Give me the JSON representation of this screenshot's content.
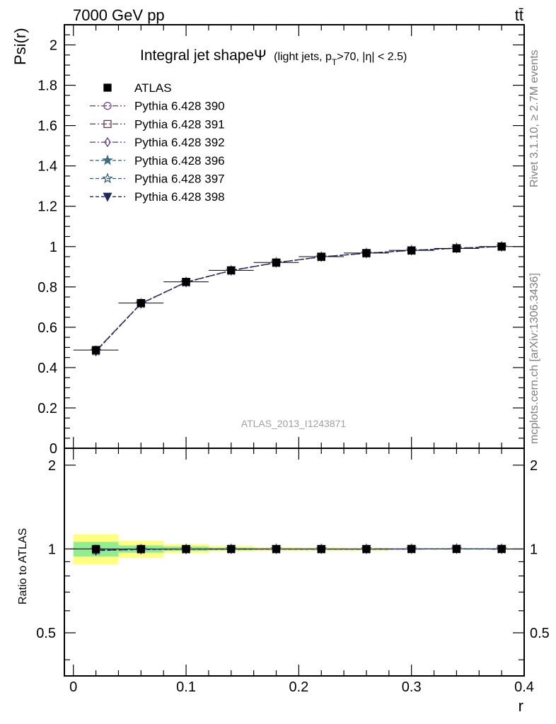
{
  "header": {
    "energy_label": "7000 GeV pp",
    "process_label": "tt̄",
    "side_rivet": "Rivet 3.1.10, ≥ 2.7M events",
    "side_mcplots": "mcplots.cern.ch [arXiv:1306.3436]",
    "analysis_id": "ATLAS_2013_I1243871"
  },
  "chart_data": [
    {
      "panel": "main",
      "type": "line",
      "title": "Integral jet shape Ψ (light jets, pT>70, |η| < 2.5)",
      "title_main": "Integral jet shapeΨ",
      "title_sub_pre": "(light jets, p",
      "title_sub_T": "T",
      "title_sub_post": ">70, |η| < 2.5)",
      "ylabel": "Psi(r)",
      "xlim": [
        -0.008,
        0.4
      ],
      "ylim": [
        0,
        2.1
      ],
      "yticks": [
        0,
        0.2,
        0.4,
        0.6,
        0.8,
        1,
        1.2,
        1.4,
        1.6,
        1.8,
        2
      ],
      "ytick_labels": [
        "0",
        "0.2",
        "0.4",
        "0.6",
        "0.8",
        "1",
        "1.2",
        "1.4",
        "1.6",
        "1.8",
        "2"
      ],
      "x": [
        0.02,
        0.06,
        0.1,
        0.14,
        0.18,
        0.22,
        0.26,
        0.3,
        0.34,
        0.38
      ],
      "bin_edges": [
        0,
        0.04,
        0.08,
        0.12,
        0.16,
        0.2,
        0.24,
        0.28,
        0.32,
        0.36,
        0.4
      ],
      "legend_position": "top-left",
      "series": [
        {
          "name": "ATLAS",
          "marker": "filled-square",
          "color": "#000000",
          "dash": "none",
          "values": [
            0.487,
            0.72,
            0.825,
            0.882,
            0.921,
            0.95,
            0.968,
            0.981,
            0.991,
            1.0
          ]
        },
        {
          "name": "Pythia 6.428 390",
          "marker": "open-circle",
          "color": "#7d4a8e",
          "dash": "dashdot",
          "values": [
            0.482,
            0.718,
            0.824,
            0.882,
            0.921,
            0.949,
            0.967,
            0.981,
            0.992,
            1.0
          ]
        },
        {
          "name": "Pythia 6.428 391",
          "marker": "open-square",
          "color": "#6b3a55",
          "dash": "dashdot",
          "values": [
            0.484,
            0.719,
            0.824,
            0.882,
            0.92,
            0.949,
            0.967,
            0.981,
            0.992,
            1.0
          ]
        },
        {
          "name": "Pythia 6.428 392",
          "marker": "open-diamond",
          "color": "#5a3a8e",
          "dash": "dashdot",
          "values": [
            0.481,
            0.718,
            0.823,
            0.881,
            0.92,
            0.949,
            0.967,
            0.981,
            0.992,
            1.0
          ]
        },
        {
          "name": "Pythia 6.428 396",
          "marker": "filled-star",
          "color": "#3d6d82",
          "dash": "dashed",
          "values": [
            0.482,
            0.717,
            0.823,
            0.881,
            0.92,
            0.949,
            0.967,
            0.981,
            0.992,
            1.0
          ]
        },
        {
          "name": "Pythia 6.428 397",
          "marker": "open-star",
          "color": "#2f5b73",
          "dash": "dashed",
          "values": [
            0.483,
            0.718,
            0.824,
            0.881,
            0.921,
            0.949,
            0.967,
            0.981,
            0.992,
            1.0
          ]
        },
        {
          "name": "Pythia 6.428 398",
          "marker": "filled-triangle-down",
          "color": "#1f2a5c",
          "dash": "dashed",
          "values": [
            0.48,
            0.717,
            0.823,
            0.881,
            0.92,
            0.949,
            0.967,
            0.981,
            0.992,
            1.0
          ]
        }
      ]
    },
    {
      "panel": "ratio",
      "type": "line",
      "ylabel": "Ratio to ATLAS",
      "xlabel": "r",
      "xlim": [
        -0.008,
        0.4
      ],
      "ylim": [
        0.35,
        2.3
      ],
      "scale": "log",
      "yticks": [
        0.5,
        1,
        2
      ],
      "ytick_labels": [
        "0.5",
        "1",
        "2"
      ],
      "xticks": [
        0,
        0.1,
        0.2,
        0.3,
        0.4
      ],
      "xtick_labels": [
        "0",
        "0.1",
        "0.2",
        "0.3",
        "0.4"
      ],
      "x": [
        0.02,
        0.06,
        0.1,
        0.14,
        0.18,
        0.22,
        0.26,
        0.3,
        0.34,
        0.38
      ],
      "bin_edges": [
        0,
        0.04,
        0.08,
        0.12,
        0.16,
        0.2,
        0.24,
        0.28,
        0.32,
        0.36,
        0.4
      ],
      "band_stat": {
        "color": "#90ee90",
        "lo": [
          0.94,
          0.97,
          0.985,
          0.99,
          0.995,
          0.995,
          0.995,
          0.999,
          0.999,
          0.999
        ],
        "hi": [
          1.06,
          1.03,
          1.02,
          1.01,
          1.005,
          1.005,
          1.005,
          1.001,
          1.001,
          1.001
        ]
      },
      "band_total": {
        "color": "#ffff80",
        "lo": [
          0.88,
          0.93,
          0.965,
          0.98,
          0.985,
          0.985,
          0.985,
          0.999,
          0.999,
          0.999
        ],
        "hi": [
          1.13,
          1.07,
          1.04,
          1.025,
          1.015,
          1.012,
          1.008,
          1.001,
          1.001,
          1.001
        ]
      },
      "series": [
        {
          "name": "Pythia 6.428 390",
          "values": [
            0.99,
            0.997,
            0.999,
            1.0,
            1.0,
            0.999,
            0.999,
            1.0,
            1.001,
            1.0
          ]
        },
        {
          "name": "Pythia 6.428 391",
          "values": [
            0.994,
            0.999,
            0.999,
            1.0,
            0.999,
            0.999,
            0.999,
            1.0,
            1.001,
            1.0
          ]
        },
        {
          "name": "Pythia 6.428 392",
          "values": [
            0.988,
            0.997,
            0.998,
            0.999,
            0.999,
            0.999,
            0.999,
            1.0,
            1.001,
            1.0
          ]
        },
        {
          "name": "Pythia 6.428 396",
          "values": [
            0.99,
            0.996,
            0.998,
            0.999,
            0.999,
            0.999,
            0.999,
            1.0,
            1.001,
            1.0
          ]
        },
        {
          "name": "Pythia 6.428 397",
          "values": [
            0.992,
            0.997,
            0.999,
            0.999,
            1.0,
            0.999,
            0.999,
            1.0,
            1.001,
            1.0
          ]
        },
        {
          "name": "Pythia 6.428 398",
          "values": [
            0.986,
            0.996,
            0.998,
            0.999,
            0.999,
            0.999,
            0.999,
            1.0,
            1.001,
            1.0
          ]
        }
      ]
    }
  ]
}
